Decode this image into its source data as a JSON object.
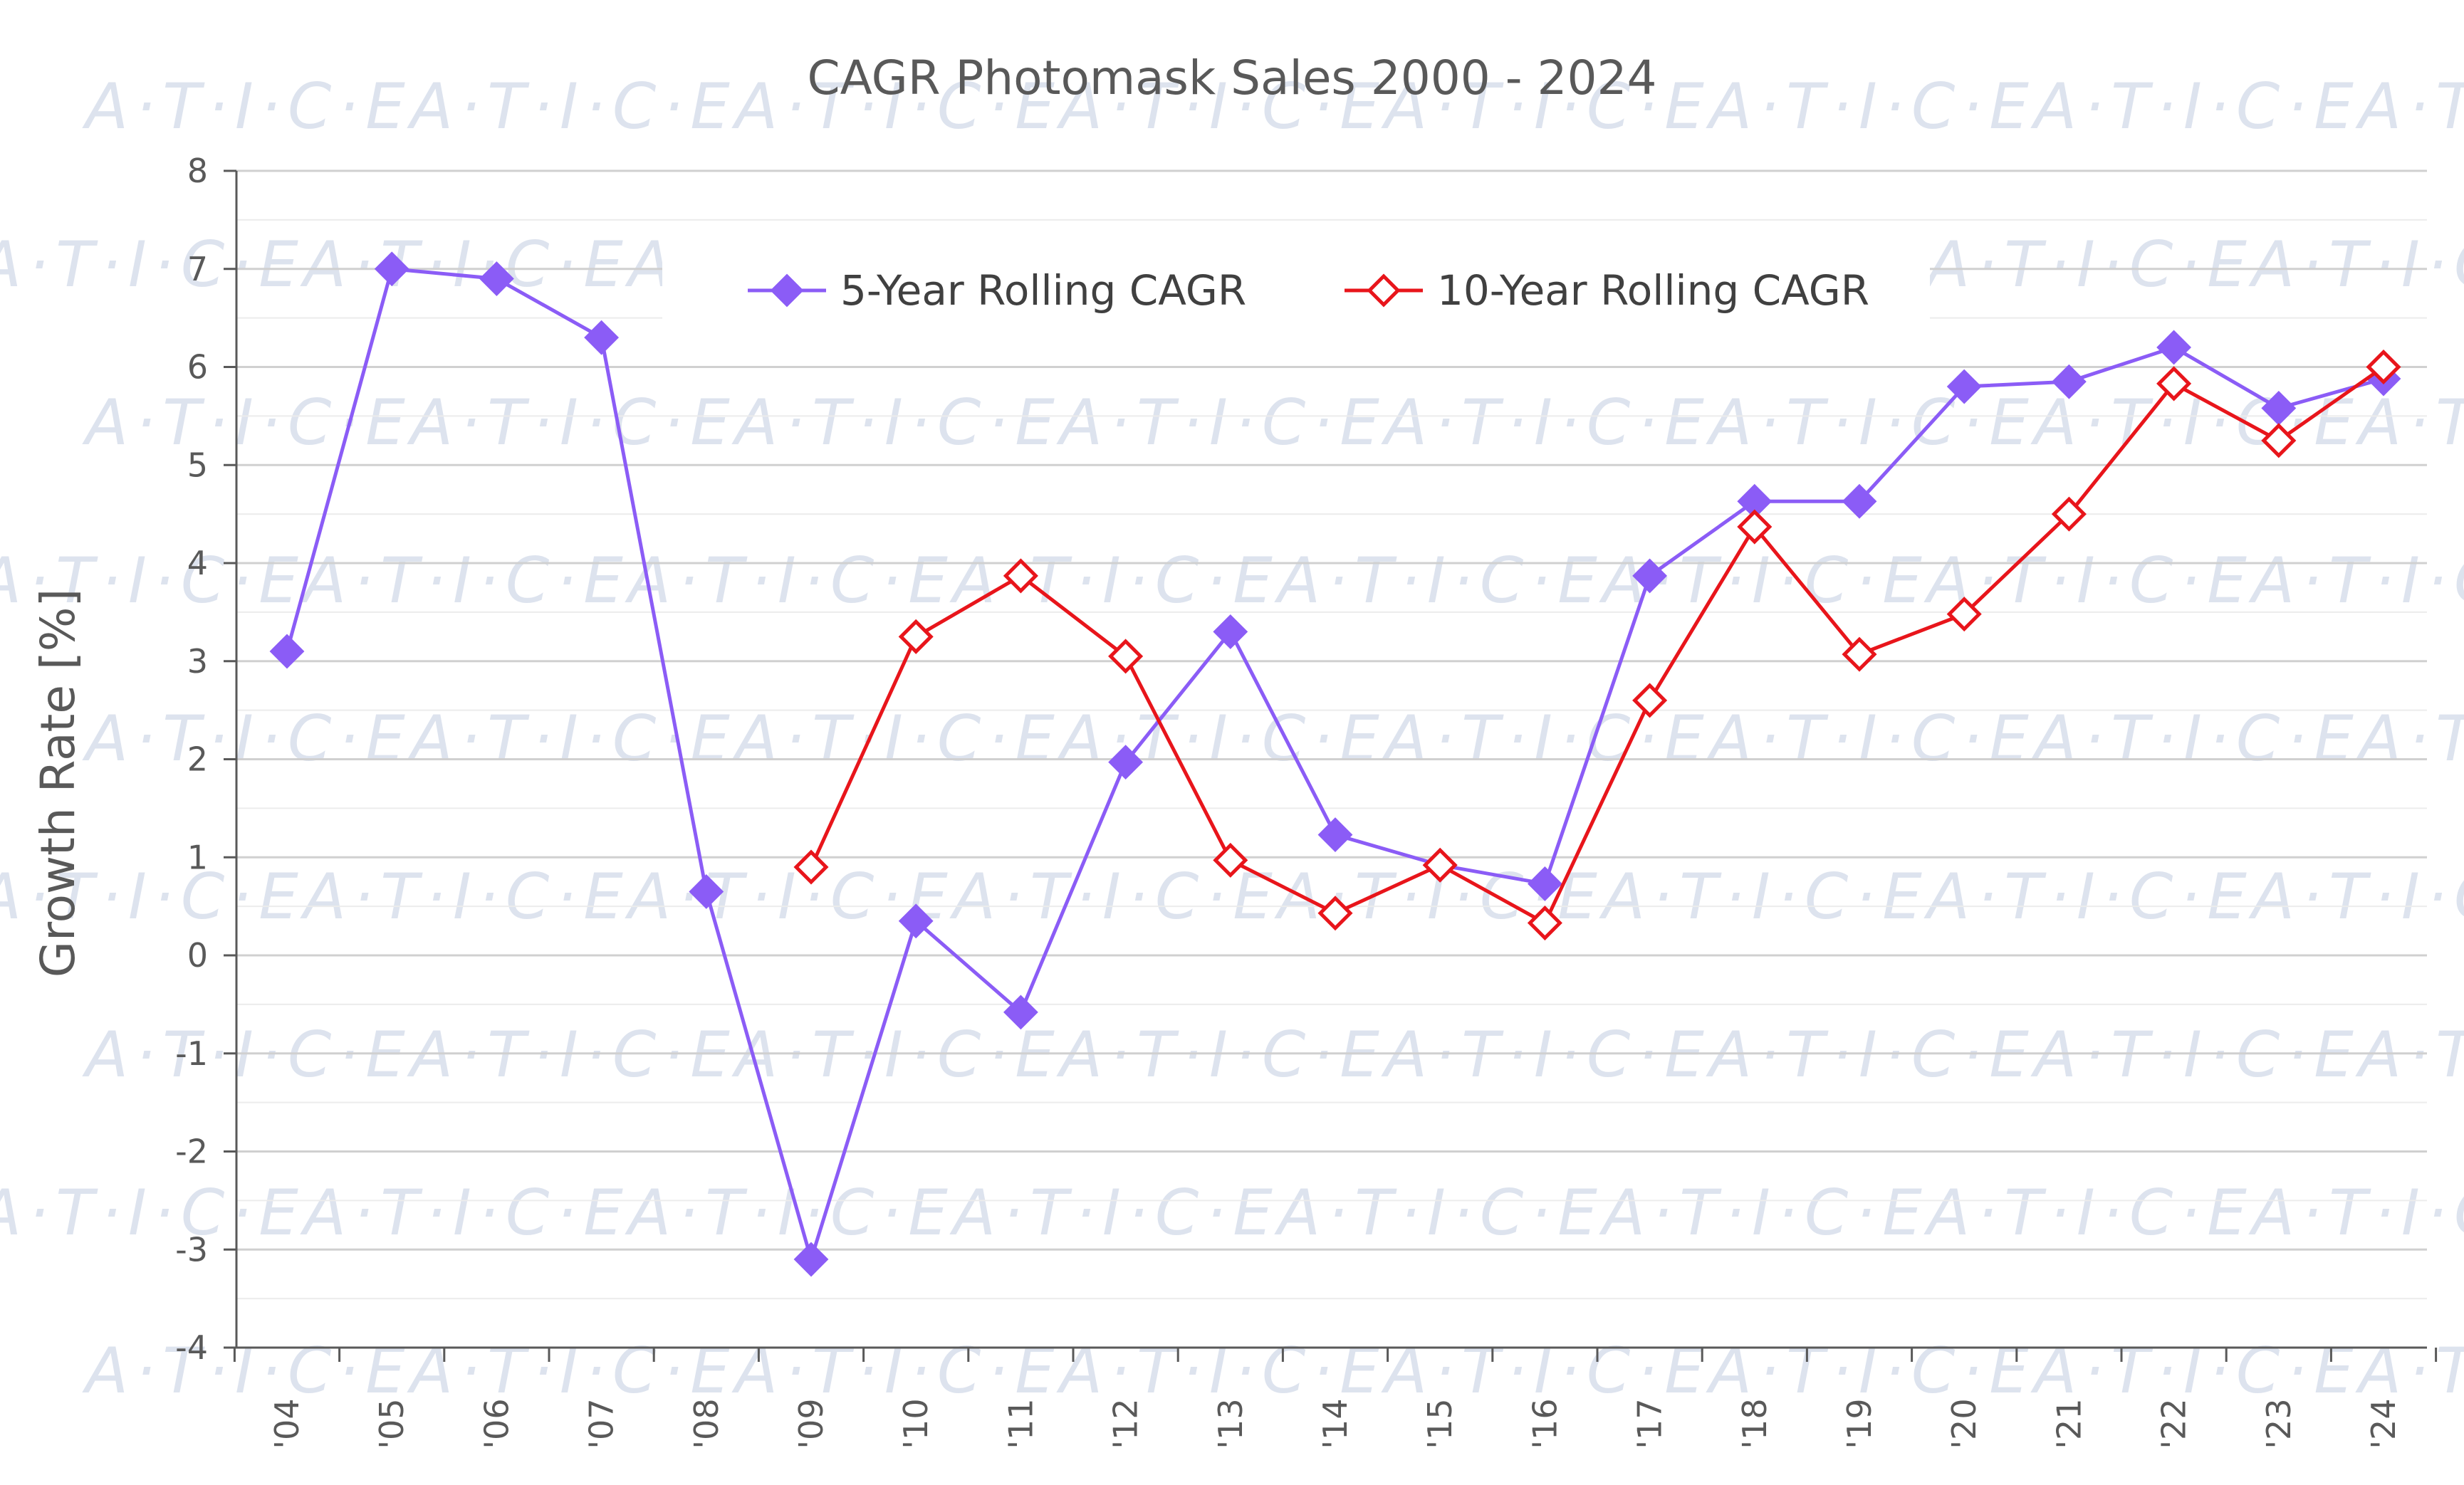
{
  "watermark_text": "A·T·I·C·E",
  "chart_data": {
    "type": "line",
    "title": "CAGR Photomask Sales 2000 - 2024",
    "xlabel": "",
    "ylabel": "Growth Rate [%]",
    "ylim": [
      -4,
      8
    ],
    "yticks": [
      "8",
      "7",
      "6",
      "5",
      "4",
      "3",
      "2",
      "1",
      "0",
      "-1",
      "-2",
      "-3",
      "-4"
    ],
    "grid": true,
    "legend_position": "top-center",
    "categories": [
      "'04",
      "'05",
      "'06",
      "'07",
      "'08",
      "'09",
      "'10",
      "'11",
      "'12",
      "'13",
      "'14",
      "'15",
      "'16",
      "'17",
      "'18",
      "'19",
      "'20",
      "'21",
      "'22",
      "'23",
      "'24"
    ],
    "series": [
      {
        "name": "5-Year Rolling CAGR",
        "color": "#8b5cf6",
        "marker": "filled-diamond",
        "values": [
          3.1,
          7.0,
          6.9,
          6.3,
          0.65,
          -3.1,
          0.35,
          -0.58,
          1.97,
          3.3,
          1.23,
          0.92,
          0.73,
          3.87,
          4.63,
          4.63,
          5.8,
          5.85,
          6.2,
          5.58,
          5.88
        ]
      },
      {
        "name": "10-Year Rolling CAGR",
        "color": "#e8151b",
        "marker": "hollow-diamond",
        "values": [
          null,
          null,
          null,
          null,
          null,
          0.9,
          3.25,
          3.87,
          3.05,
          0.97,
          0.43,
          0.92,
          0.33,
          2.6,
          4.37,
          3.07,
          3.48,
          4.5,
          5.83,
          5.25,
          6.0
        ]
      }
    ]
  }
}
